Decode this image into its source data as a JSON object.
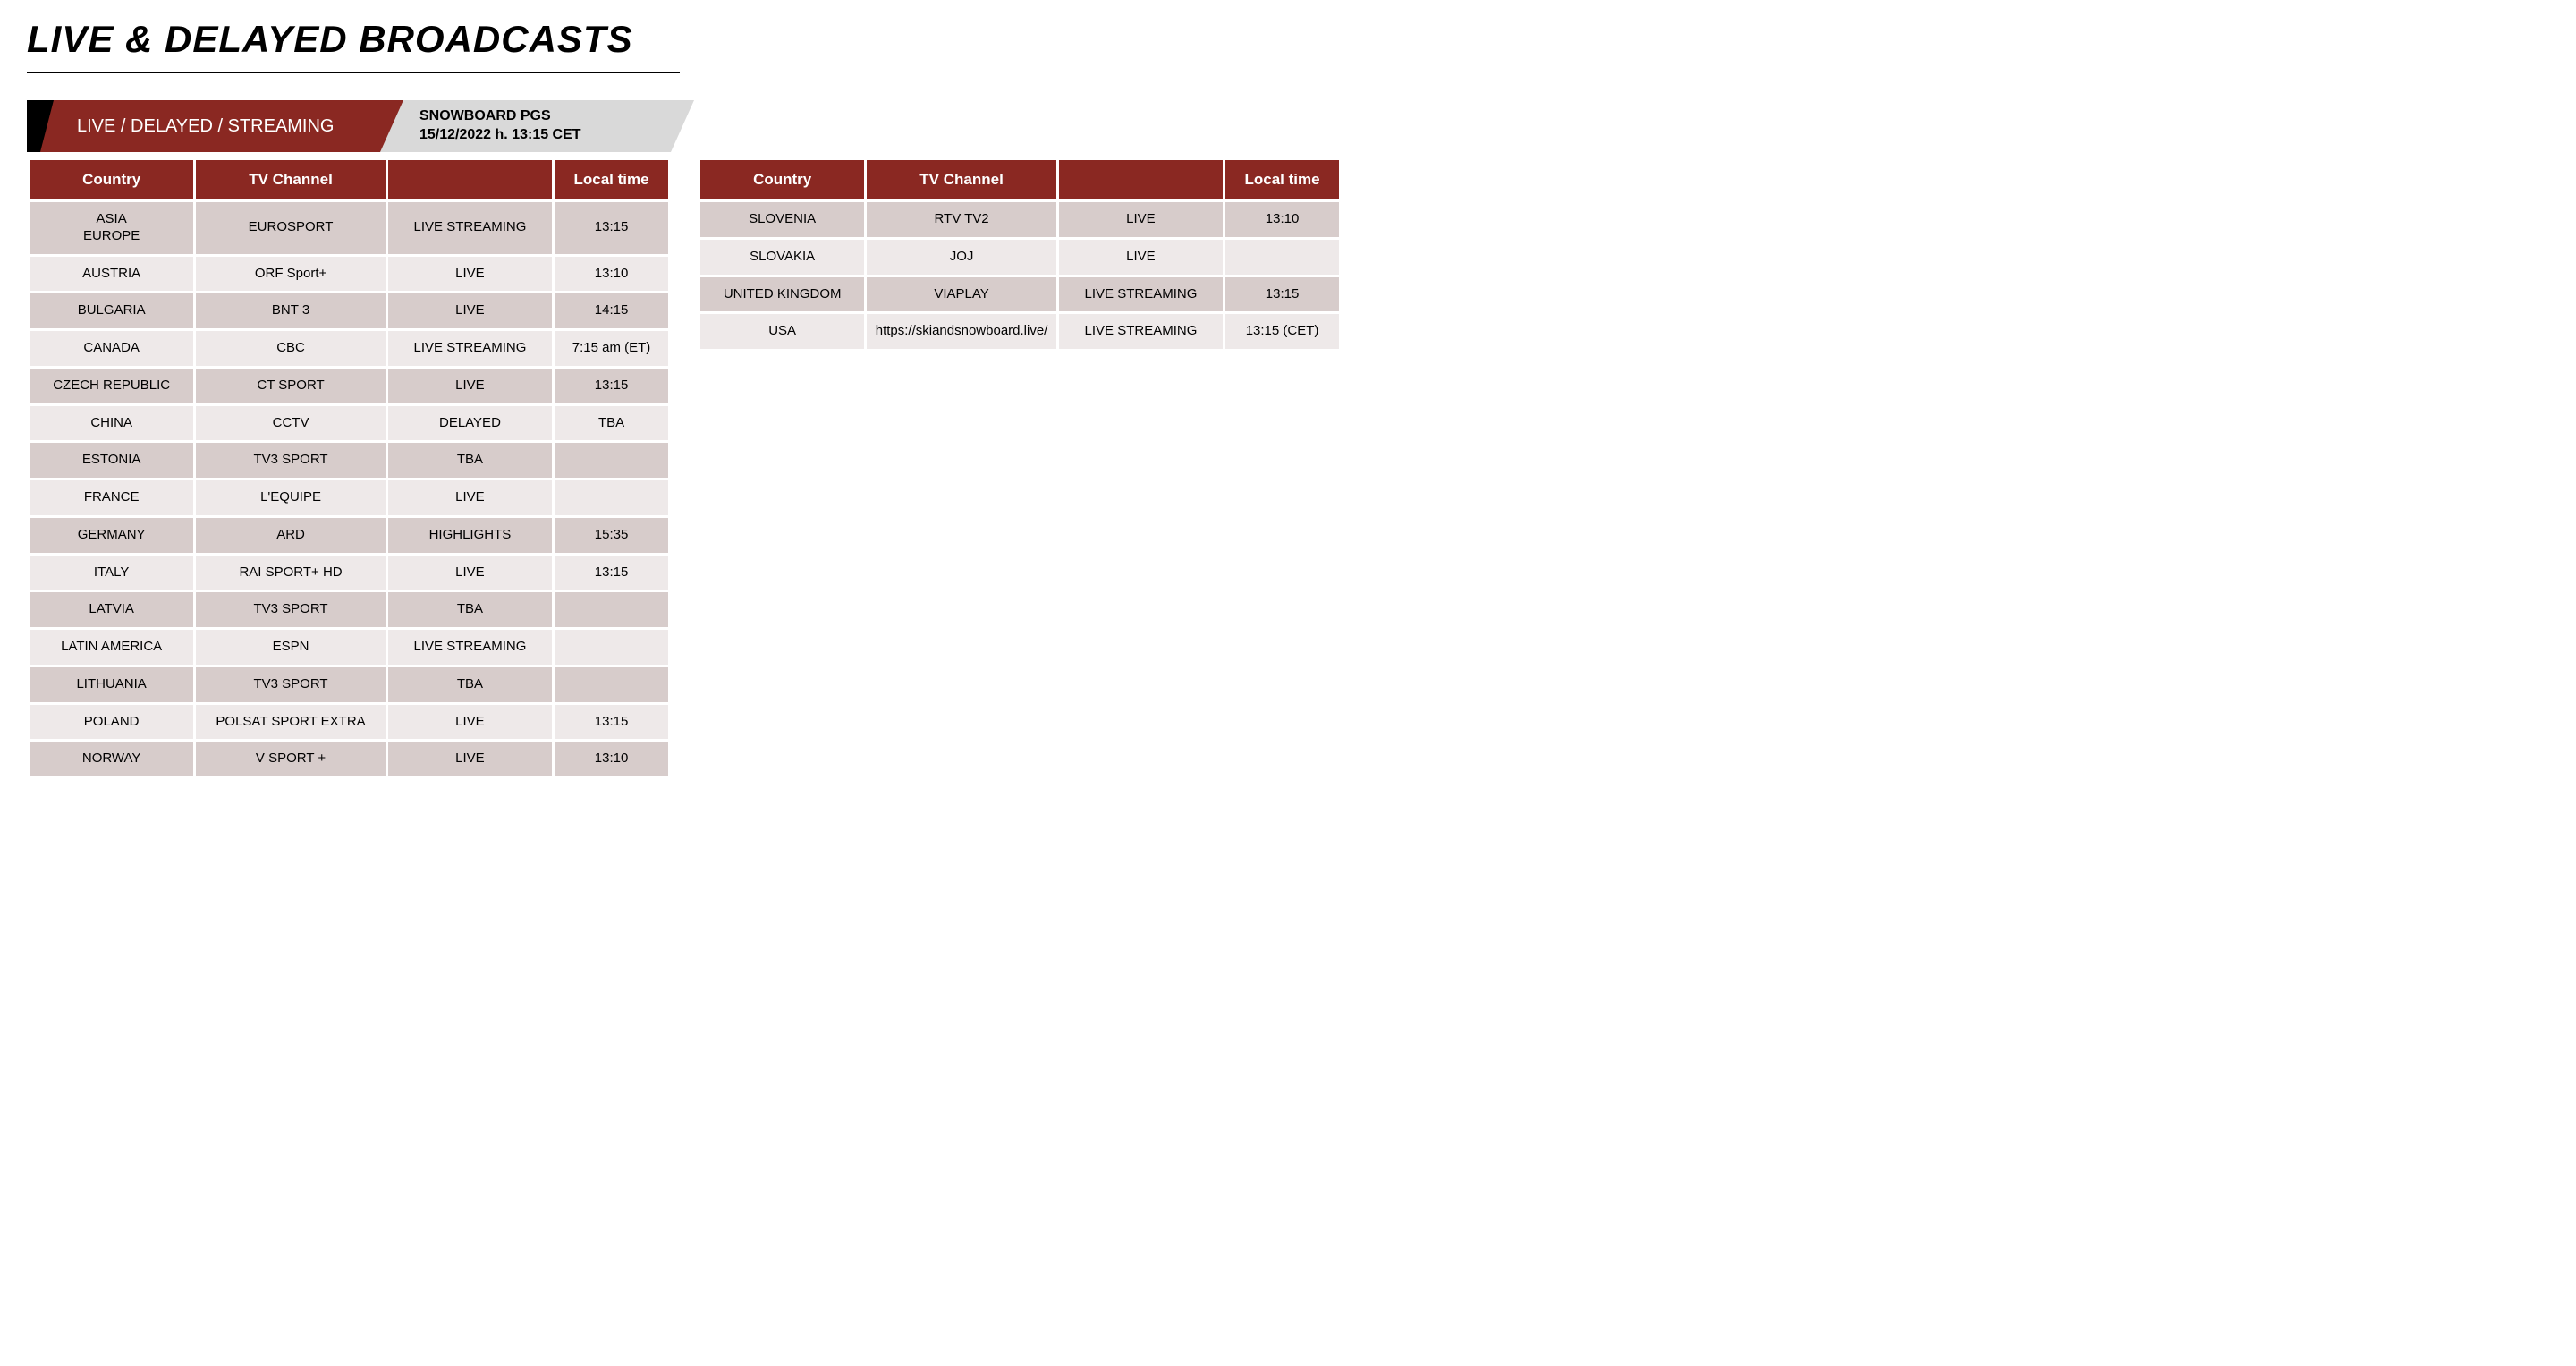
{
  "title": "LIVE & DELAYED BROADCASTS",
  "tabs": {
    "mode_label": "LIVE / DELAYED / STREAMING",
    "event_name": "SNOWBOARD PGS",
    "event_datetime": "15/12/2022 h. 13:15 CET"
  },
  "columns": {
    "country": "Country",
    "channel": "TV Channel",
    "type": "",
    "time": "Local time"
  },
  "colors": {
    "brand": "#8a2822",
    "tab_gray": "#d9d9d9",
    "row_odd": "#d7cccb",
    "row_even": "#eee9e9",
    "text": "#000000",
    "header_text": "#ffffff",
    "background": "#ffffff"
  },
  "left_rows": [
    {
      "country": "ASIA\nEUROPE",
      "channel": "EUROSPORT",
      "type": "LIVE STREAMING",
      "time": "13:15"
    },
    {
      "country": "AUSTRIA",
      "channel": "ORF Sport+",
      "type": "LIVE",
      "time": "13:10"
    },
    {
      "country": "BULGARIA",
      "channel": "BNT 3",
      "type": "LIVE",
      "time": "14:15"
    },
    {
      "country": "CANADA",
      "channel": "CBC",
      "type": "LIVE STREAMING",
      "time": "7:15 am (ET)"
    },
    {
      "country": "CZECH REPUBLIC",
      "channel": "CT SPORT",
      "type": "LIVE",
      "time": "13:15"
    },
    {
      "country": "CHINA",
      "channel": "CCTV",
      "type": "DELAYED",
      "time": "TBA"
    },
    {
      "country": "ESTONIA",
      "channel": "TV3 SPORT",
      "type": "TBA",
      "time": ""
    },
    {
      "country": "FRANCE",
      "channel": "L'EQUIPE",
      "type": "LIVE",
      "time": ""
    },
    {
      "country": "GERMANY",
      "channel": "ARD",
      "type": "HIGHLIGHTS",
      "time": "15:35"
    },
    {
      "country": "ITALY",
      "channel": "RAI SPORT+ HD",
      "type": "LIVE",
      "time": "13:15"
    },
    {
      "country": "LATVIA",
      "channel": "TV3 SPORT",
      "type": "TBA",
      "time": ""
    },
    {
      "country": "LATIN AMERICA",
      "channel": "ESPN",
      "type": "LIVE STREAMING",
      "time": ""
    },
    {
      "country": "LITHUANIA",
      "channel": "TV3 SPORT",
      "type": "TBA",
      "time": ""
    },
    {
      "country": "POLAND",
      "channel": "POLSAT SPORT EXTRA",
      "type": "LIVE",
      "time": "13:15"
    },
    {
      "country": "NORWAY",
      "channel": "V SPORT +",
      "type": "LIVE",
      "time": "13:10"
    }
  ],
  "right_rows": [
    {
      "country": "SLOVENIA",
      "channel": "RTV TV2",
      "type": "LIVE",
      "time": "13:10"
    },
    {
      "country": "SLOVAKIA",
      "channel": "JOJ",
      "type": "LIVE",
      "time": ""
    },
    {
      "country": "UNITED KINGDOM",
      "channel": "VIAPLAY",
      "type": "LIVE STREAMING",
      "time": "13:15"
    },
    {
      "country": "USA",
      "channel": "https://skiandsnowboard.live/",
      "type": "LIVE STREAMING",
      "time": "13:15 (CET)"
    }
  ]
}
